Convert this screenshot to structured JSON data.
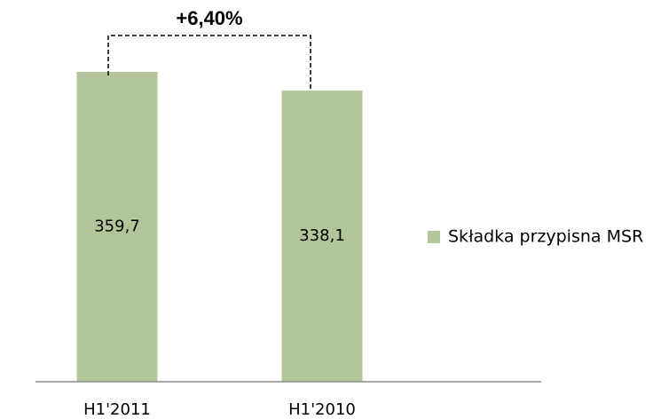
{
  "chart_data": {
    "type": "bar",
    "annotation": "+6,40%",
    "categories": [
      "H1'2011",
      "H1'2010"
    ],
    "series": [
      {
        "name": "Składka przypisna MSR",
        "color": "#b3c69a",
        "values": [
          359.7,
          338.1
        ],
        "value_labels": [
          "359,7",
          "338,1"
        ]
      }
    ]
  }
}
